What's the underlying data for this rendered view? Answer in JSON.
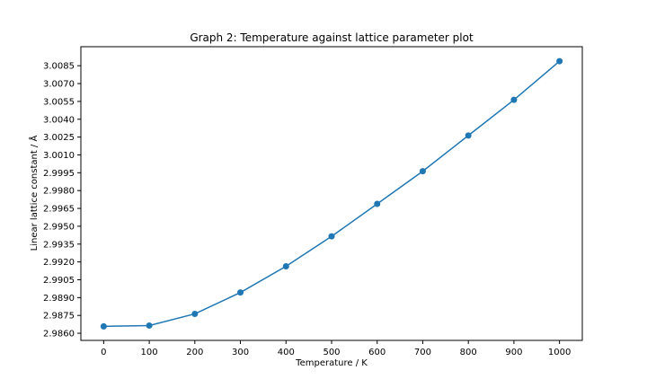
{
  "chart_data": {
    "type": "line",
    "title": "Graph 2: Temperature against lattice parameter plot",
    "xlabel": "Temperature / K",
    "ylabel": "Linear lattice constant / Å",
    "x": [
      0,
      100,
      200,
      300,
      400,
      500,
      600,
      700,
      800,
      900,
      1000
    ],
    "series": [
      {
        "name": "lattice constant",
        "color": "#1f77b4",
        "marker": "circle",
        "values": [
          2.98658,
          2.98665,
          2.98763,
          2.98943,
          2.99163,
          2.99415,
          2.99688,
          2.99963,
          3.00263,
          3.00563,
          3.00888
        ]
      }
    ],
    "xticks": [
      "0",
      "100",
      "200",
      "300",
      "400",
      "500",
      "600",
      "700",
      "800",
      "900",
      "1000"
    ],
    "yticks": [
      "2.9860",
      "2.9875",
      "2.9890",
      "2.9905",
      "2.9920",
      "2.9935",
      "2.9950",
      "2.9965",
      "2.9980",
      "2.9995",
      "3.0010",
      "3.0025",
      "3.0040",
      "3.0055",
      "3.0070",
      "3.0085"
    ],
    "xlim": [
      -50,
      1050
    ],
    "ylim": [
      2.9854,
      3.0101
    ],
    "grid": false,
    "legend": "none"
  }
}
